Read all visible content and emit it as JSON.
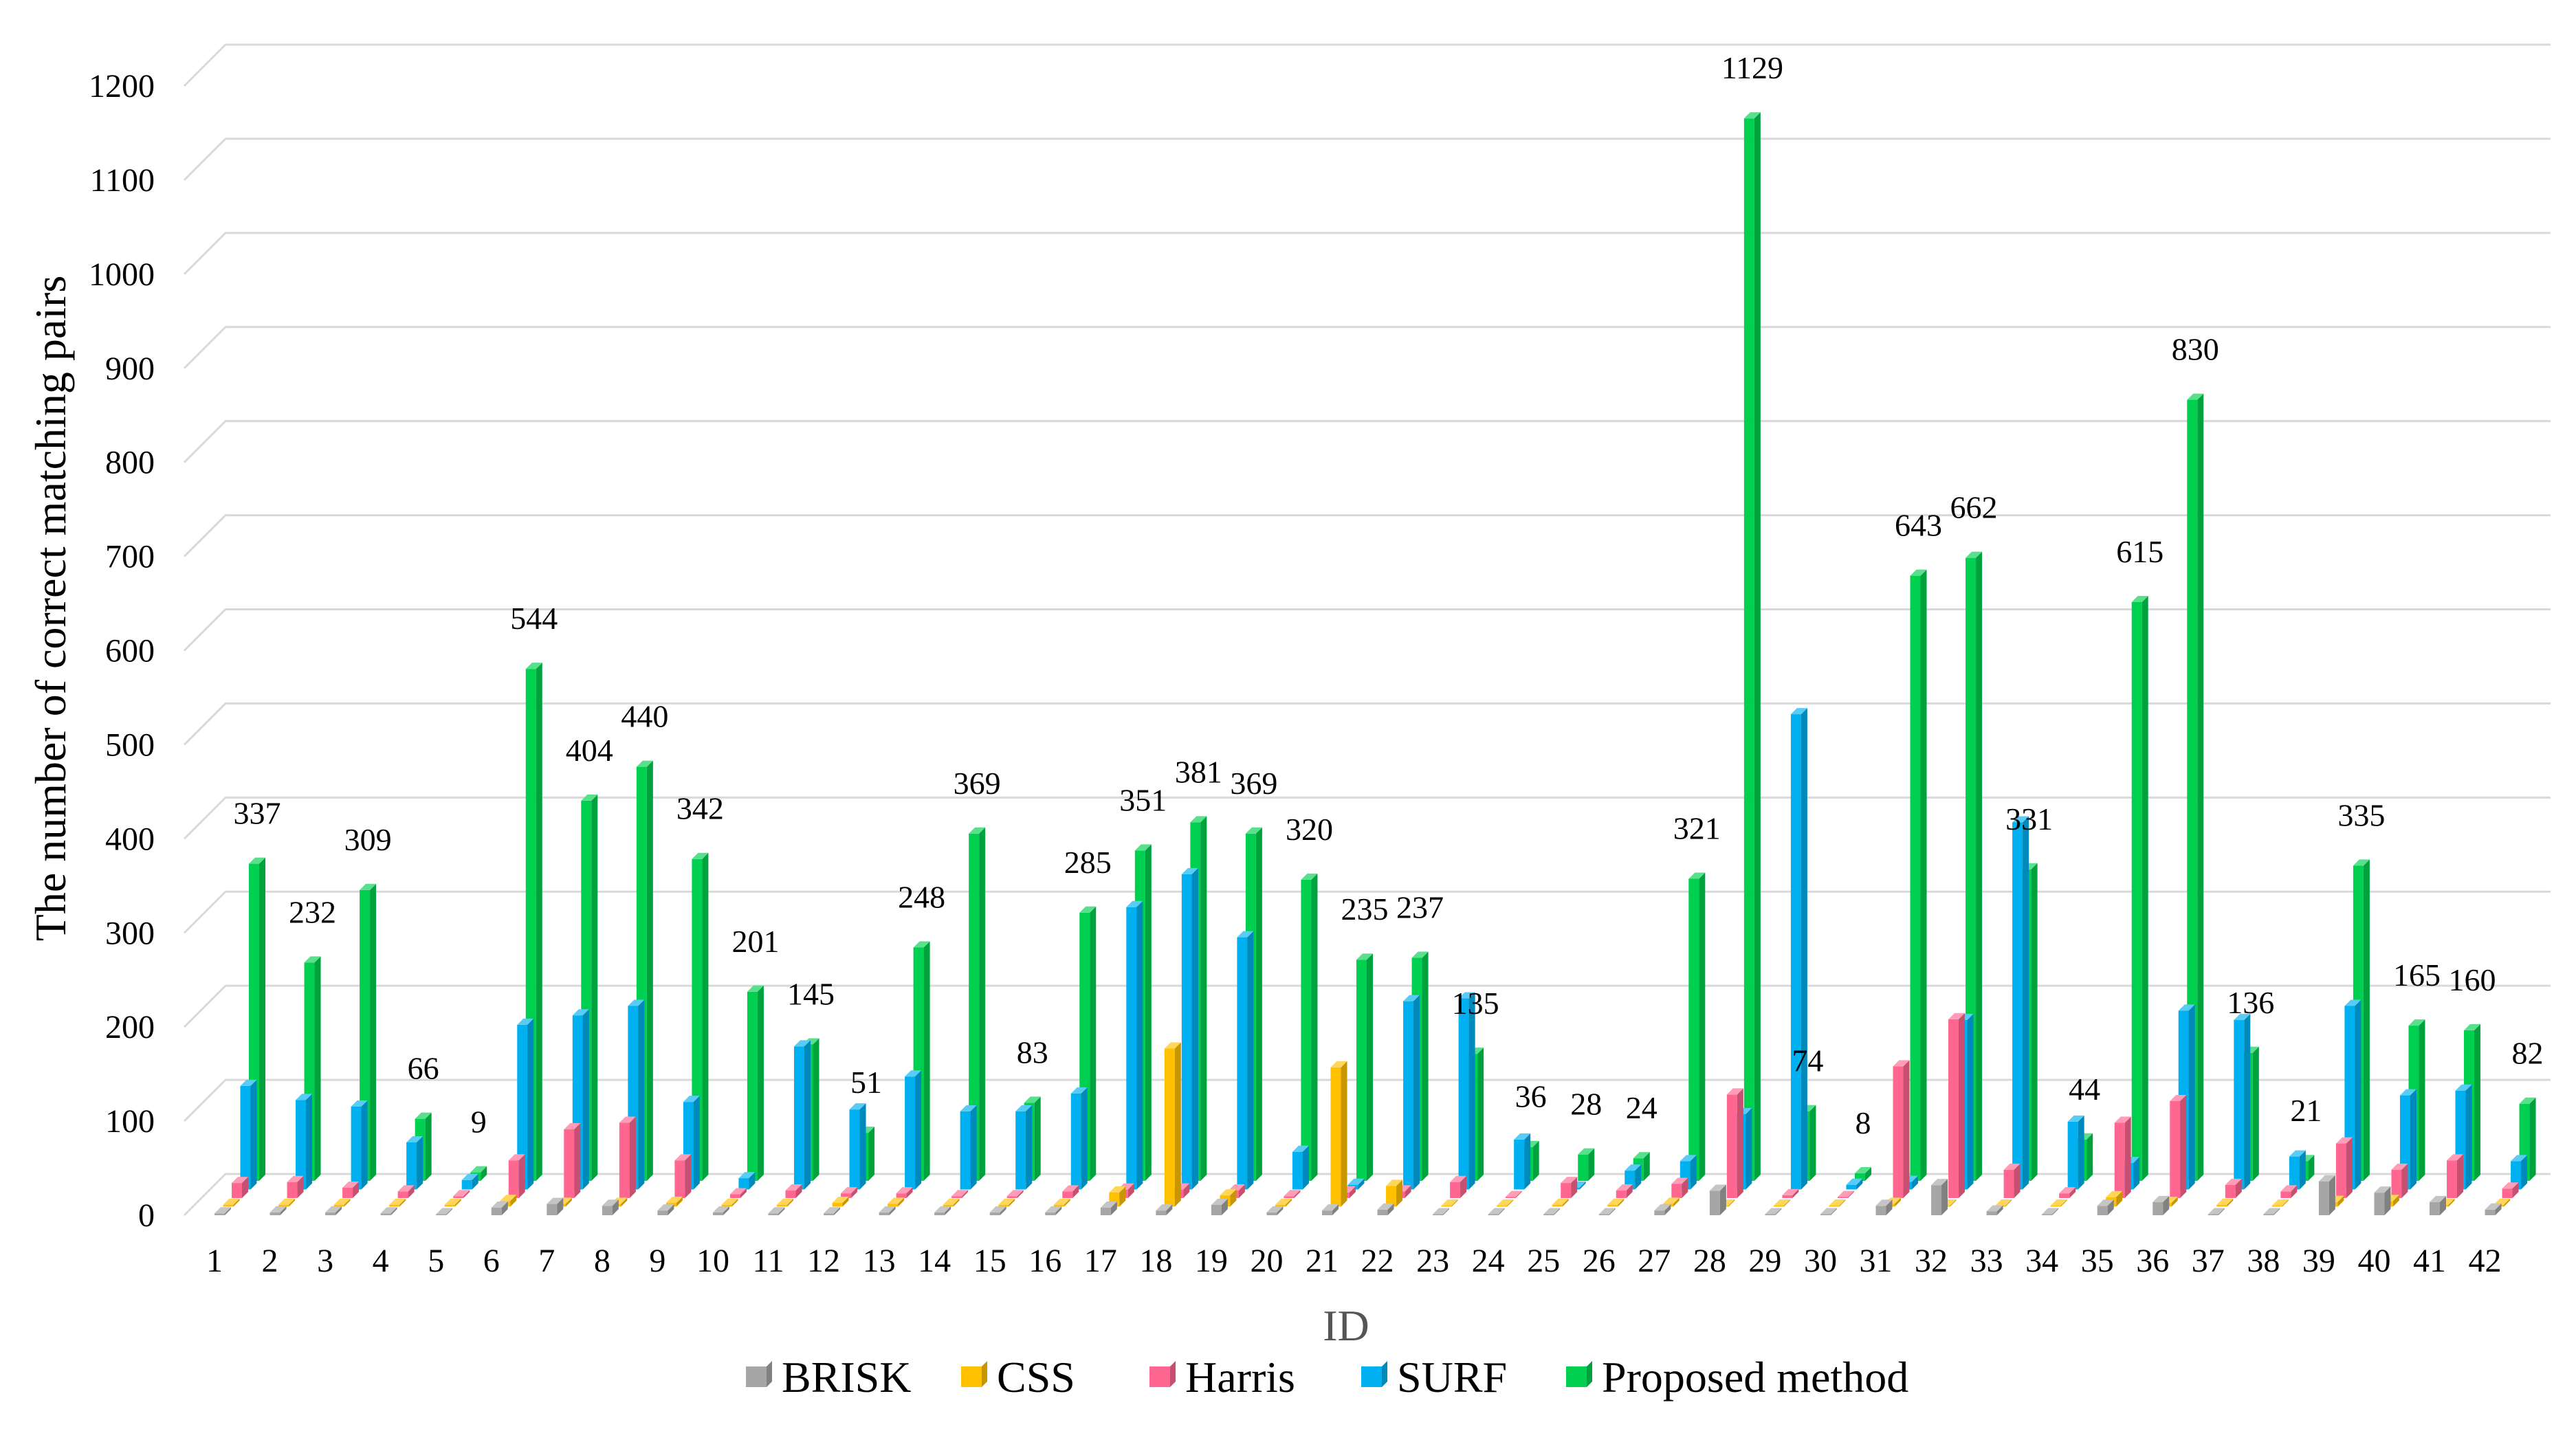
{
  "chart_data": {
    "type": "bar",
    "title": "",
    "xlabel": "ID",
    "ylabel": "The number of correct matching pairs",
    "ylim": [
      0,
      1200
    ],
    "yticks": [
      0,
      100,
      200,
      300,
      400,
      500,
      600,
      700,
      800,
      900,
      1000,
      1100,
      1200
    ],
    "grid": true,
    "legend_position": "bottom",
    "categories": [
      "1",
      "2",
      "3",
      "4",
      "5",
      "6",
      "7",
      "8",
      "9",
      "10",
      "11",
      "12",
      "13",
      "14",
      "15",
      "16",
      "17",
      "18",
      "19",
      "20",
      "21",
      "22",
      "23",
      "24",
      "25",
      "26",
      "27",
      "28",
      "29",
      "30",
      "31",
      "32",
      "33",
      "34",
      "35",
      "36",
      "37",
      "38",
      "39",
      "40",
      "41",
      "42"
    ],
    "series": [
      {
        "name": "BRISK",
        "color": "#a6a6a6",
        "values": [
          2,
          3,
          3,
          2,
          0,
          8,
          12,
          10,
          5,
          3,
          2,
          2,
          3,
          3,
          3,
          3,
          8,
          5,
          11,
          3,
          5,
          6,
          1,
          1,
          1,
          1,
          5,
          26,
          0,
          1,
          10,
          32,
          4,
          1,
          10,
          14,
          1,
          1,
          36,
          24,
          14,
          6
        ]
      },
      {
        "name": "CSS",
        "color": "#ffc000",
        "values": [
          2,
          2,
          2,
          2,
          2,
          6,
          3,
          3,
          4,
          2,
          2,
          4,
          3,
          2,
          2,
          2,
          15,
          168,
          12,
          2,
          148,
          22,
          0,
          0,
          2,
          2,
          3,
          0,
          0,
          0,
          3,
          0,
          0,
          0,
          10,
          4,
          2,
          0,
          5,
          6,
          2,
          2
        ]
      },
      {
        "name": "Harris",
        "color": "#ff6690",
        "values": [
          16,
          17,
          11,
          7,
          2,
          40,
          73,
          80,
          40,
          4,
          8,
          5,
          5,
          2,
          2,
          7,
          9,
          9,
          8,
          2,
          6,
          7,
          17,
          0,
          16,
          8,
          15,
          110,
          3,
          1,
          140,
          190,
          30,
          5,
          80,
          103,
          14,
          7,
          58,
          30,
          40,
          10
        ]
      },
      {
        "name": "SURF",
        "color": "#00b0f0",
        "values": [
          110,
          95,
          88,
          50,
          10,
          175,
          185,
          195,
          93,
          12,
          152,
          85,
          120,
          83,
          83,
          102,
          300,
          335,
          268,
          40,
          5,
          200,
          203,
          53,
          2,
          20,
          30,
          80,
          505,
          5,
          8,
          180,
          390,
          72,
          28,
          190,
          180,
          35,
          195,
          100,
          105,
          30
        ]
      },
      {
        "name": "Proposed method",
        "color": "#00d050",
        "values": [
          337,
          232,
          309,
          66,
          9,
          544,
          404,
          440,
          342,
          201,
          145,
          51,
          248,
          369,
          83,
          285,
          351,
          381,
          369,
          320,
          235,
          237,
          135,
          36,
          28,
          24,
          321,
          1129,
          74,
          8,
          643,
          662,
          331,
          44,
          615,
          830,
          136,
          21,
          335,
          165,
          160,
          82
        ]
      }
    ],
    "data_labels": [
      "337",
      "232",
      "309",
      "66",
      "9",
      "544",
      "404",
      "440",
      "342",
      "201",
      "145",
      "51",
      "248",
      "369",
      "83",
      "285",
      "351",
      "381",
      "369",
      "320",
      "235",
      "237",
      "135",
      "36",
      "28",
      "24",
      "321",
      "1129",
      "74",
      "8",
      "643",
      "662",
      "331",
      "44",
      "615",
      "830",
      "136",
      "21",
      "335",
      "165",
      "160",
      "82"
    ]
  }
}
